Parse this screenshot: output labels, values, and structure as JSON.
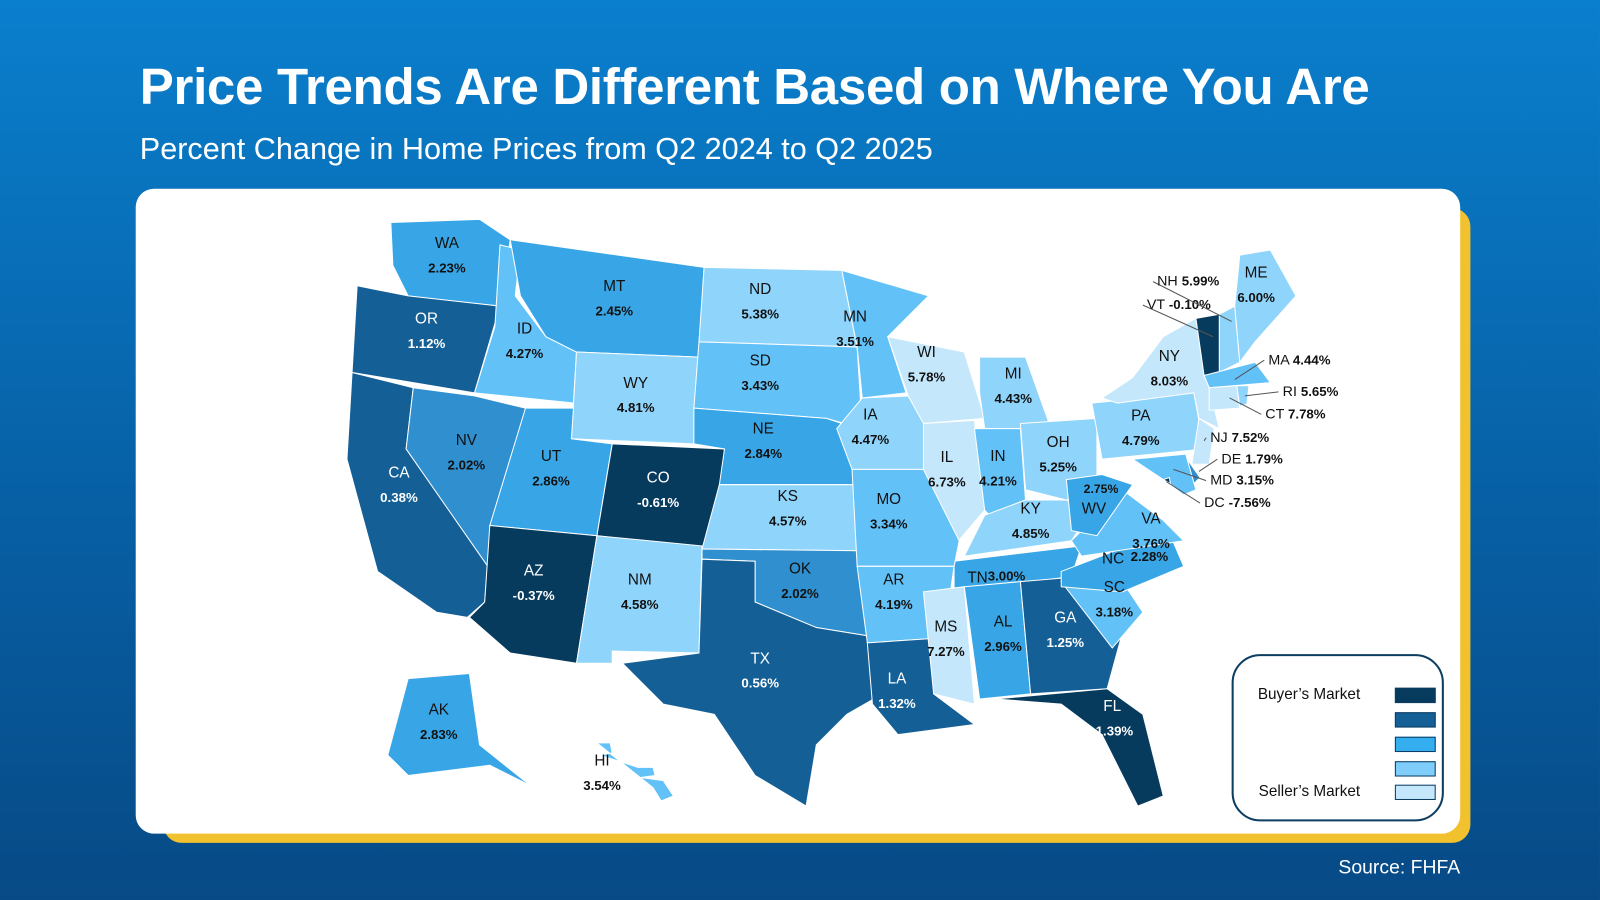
{
  "header": {
    "title": "Price Trends Are Different Based on Where You Are",
    "subtitle": "Percent Change in Home Prices from Q2 2024 to Q2 2025"
  },
  "source": "Source: FHFA",
  "legend": {
    "top_label": "Buyer’s Market",
    "bottom_label": "Seller’s Market",
    "colors": [
      "#073b5e",
      "#145f96",
      "#35aef0",
      "#7fcdfa",
      "#c4e7fb"
    ]
  },
  "map_colors": {
    "0": "#073b5e",
    "1": "#145f96",
    "2a": "#2f8fcf",
    "2": "#38a6e6",
    "3": "#62c2f8",
    "4": "#c4e7fb",
    "3b": "#8fd4fb"
  },
  "states": [
    {
      "code": "WA",
      "value": "2.23%",
      "bucket": "2"
    },
    {
      "code": "OR",
      "value": "1.12%",
      "bucket": "1"
    },
    {
      "code": "CA",
      "value": "0.38%",
      "bucket": "1"
    },
    {
      "code": "NV",
      "value": "2.02%",
      "bucket": "2a"
    },
    {
      "code": "ID",
      "value": "4.27%",
      "bucket": "3"
    },
    {
      "code": "MT",
      "value": "2.45%",
      "bucket": "2"
    },
    {
      "code": "WY",
      "value": "4.81%",
      "bucket": "3b"
    },
    {
      "code": "UT",
      "value": "2.86%",
      "bucket": "2"
    },
    {
      "code": "CO",
      "value": "-0.61%",
      "bucket": "0"
    },
    {
      "code": "AZ",
      "value": "-0.37%",
      "bucket": "0"
    },
    {
      "code": "NM",
      "value": "4.58%",
      "bucket": "3b"
    },
    {
      "code": "ND",
      "value": "5.38%",
      "bucket": "3b"
    },
    {
      "code": "SD",
      "value": "3.43%",
      "bucket": "3"
    },
    {
      "code": "NE",
      "value": "2.84%",
      "bucket": "2"
    },
    {
      "code": "KS",
      "value": "4.57%",
      "bucket": "3b"
    },
    {
      "code": "OK",
      "value": "2.02%",
      "bucket": "2a"
    },
    {
      "code": "TX",
      "value": "0.56%",
      "bucket": "1"
    },
    {
      "code": "MN",
      "value": "3.51%",
      "bucket": "3"
    },
    {
      "code": "IA",
      "value": "4.47%",
      "bucket": "3b"
    },
    {
      "code": "WI",
      "value": "5.78%",
      "bucket": "4"
    },
    {
      "code": "IL",
      "value": "6.73%",
      "bucket": "4"
    },
    {
      "code": "MI",
      "value": "4.43%",
      "bucket": "3b"
    },
    {
      "code": "IN",
      "value": "4.21%",
      "bucket": "3"
    },
    {
      "code": "OH",
      "value": "5.25%",
      "bucket": "3b"
    },
    {
      "code": "KY",
      "value": "4.85%",
      "bucket": "3b"
    },
    {
      "code": "TN",
      "value": "3.00%",
      "bucket": "2"
    },
    {
      "code": "MO",
      "value": "3.34%",
      "bucket": "3"
    },
    {
      "code": "AR",
      "value": "4.19%",
      "bucket": "3"
    },
    {
      "code": "LA",
      "value": "1.32%",
      "bucket": "1"
    },
    {
      "code": "MS",
      "value": "7.27%",
      "bucket": "4"
    },
    {
      "code": "AL",
      "value": "2.96%",
      "bucket": "2"
    },
    {
      "code": "GA",
      "value": "1.25%",
      "bucket": "1"
    },
    {
      "code": "FL",
      "value": "-1.39%",
      "bucket": "0"
    },
    {
      "code": "SC",
      "value": "3.18%",
      "bucket": "3"
    },
    {
      "code": "NC",
      "value": "2.28%",
      "bucket": "2"
    },
    {
      "code": "VA",
      "value": "3.76%",
      "bucket": "3"
    },
    {
      "code": "WV",
      "value": "2.75%",
      "bucket": "2"
    },
    {
      "code": "PA",
      "value": "4.79%",
      "bucket": "3b"
    },
    {
      "code": "NY",
      "value": "8.03%",
      "bucket": "4"
    },
    {
      "code": "VT",
      "value": "-0.10%",
      "bucket": "0"
    },
    {
      "code": "NH",
      "value": "5.99%",
      "bucket": "3b"
    },
    {
      "code": "ME",
      "value": "6.00%",
      "bucket": "3b"
    },
    {
      "code": "MA",
      "value": "4.44%",
      "bucket": "3"
    },
    {
      "code": "RI",
      "value": "5.65%",
      "bucket": "3b"
    },
    {
      "code": "CT",
      "value": "7.78%",
      "bucket": "4"
    },
    {
      "code": "NJ",
      "value": "7.52%",
      "bucket": "4"
    },
    {
      "code": "DE",
      "value": "1.79%",
      "bucket": "2a"
    },
    {
      "code": "MD",
      "value": "3.15%",
      "bucket": "3"
    },
    {
      "code": "DC",
      "value": "-7.56%",
      "bucket": "0"
    },
    {
      "code": "AK",
      "value": "2.83%",
      "bucket": "2"
    },
    {
      "code": "HI",
      "value": "3.54%",
      "bucket": "3"
    }
  ]
}
